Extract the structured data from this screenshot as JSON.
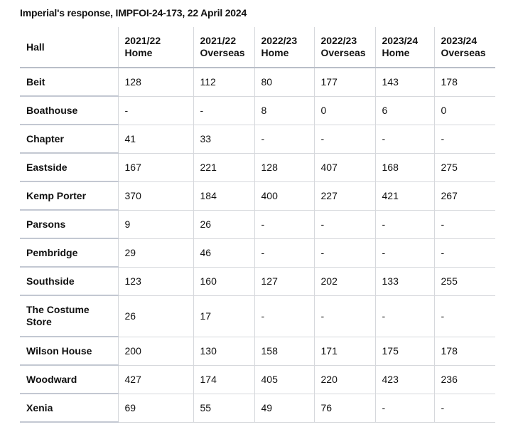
{
  "title": "Imperial's response, IMPFOI-24-173, 22 April 2024",
  "table": {
    "headers": [
      "Hall",
      "2021/22 Home",
      "2021/22 Overseas",
      "2022/23 Home",
      "2022/23 Overseas",
      "2023/24 Home",
      "2023/24 Overseas"
    ],
    "rows": [
      [
        "Beit",
        "128",
        "112",
        "80",
        "177",
        "143",
        "178"
      ],
      [
        "Boathouse",
        "-",
        "-",
        "8",
        "0",
        "6",
        "0"
      ],
      [
        "Chapter",
        "41",
        "33",
        "-",
        "-",
        "-",
        "-"
      ],
      [
        "Eastside",
        "167",
        "221",
        "128",
        "407",
        "168",
        "275"
      ],
      [
        "Kemp Porter",
        "370",
        "184",
        "400",
        "227",
        "421",
        "267"
      ],
      [
        "Parsons",
        "9",
        "26",
        "-",
        "-",
        "-",
        "-"
      ],
      [
        "Pembridge",
        "29",
        "46",
        "-",
        "-",
        "-",
        "-"
      ],
      [
        "Southside",
        "123",
        "160",
        "127",
        "202",
        "133",
        "255"
      ],
      [
        "The Costume Store",
        "26",
        "17",
        "-",
        "-",
        "-",
        "-"
      ],
      [
        "Wilson House",
        "200",
        "130",
        "158",
        "171",
        "175",
        "178"
      ],
      [
        "Woodward",
        "427",
        "174",
        "405",
        "220",
        "423",
        "236"
      ],
      [
        "Xenia",
        "69",
        "55",
        "49",
        "76",
        "-",
        "-"
      ]
    ]
  }
}
